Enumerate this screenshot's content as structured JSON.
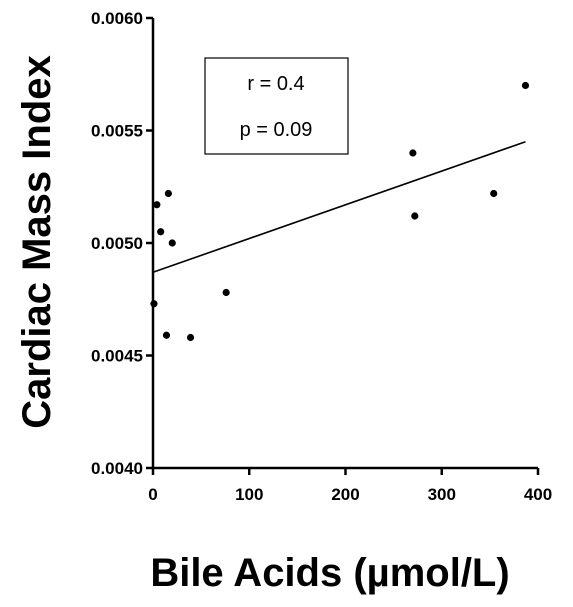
{
  "chart_data": {
    "type": "scatter",
    "xlabel": "Bile Acids (µmol/L)",
    "ylabel": "Cardiac Mass Index",
    "xlim": [
      0,
      400
    ],
    "ylim": [
      0.004,
      0.006
    ],
    "x_ticks": [
      "0",
      "100",
      "200",
      "300",
      "400"
    ],
    "y_ticks": [
      "0.0040",
      "0.0045",
      "0.0050",
      "0.0055",
      "0.0060"
    ],
    "grid": false,
    "points": [
      {
        "x": 1,
        "y": 0.00473
      },
      {
        "x": 4,
        "y": 0.00517
      },
      {
        "x": 8,
        "y": 0.00505
      },
      {
        "x": 14,
        "y": 0.00459
      },
      {
        "x": 16,
        "y": 0.00522
      },
      {
        "x": 20,
        "y": 0.005
      },
      {
        "x": 39,
        "y": 0.00458
      },
      {
        "x": 76,
        "y": 0.00478
      },
      {
        "x": 270,
        "y": 0.0054
      },
      {
        "x": 272,
        "y": 0.00512
      },
      {
        "x": 354,
        "y": 0.00522
      },
      {
        "x": 387,
        "y": 0.0057
      }
    ],
    "fit_line": {
      "x": [
        0,
        387
      ],
      "y": [
        0.00487,
        0.00545
      ]
    },
    "annotation": {
      "r_label": "r =  0.4",
      "p_label": "p = 0.09"
    }
  }
}
